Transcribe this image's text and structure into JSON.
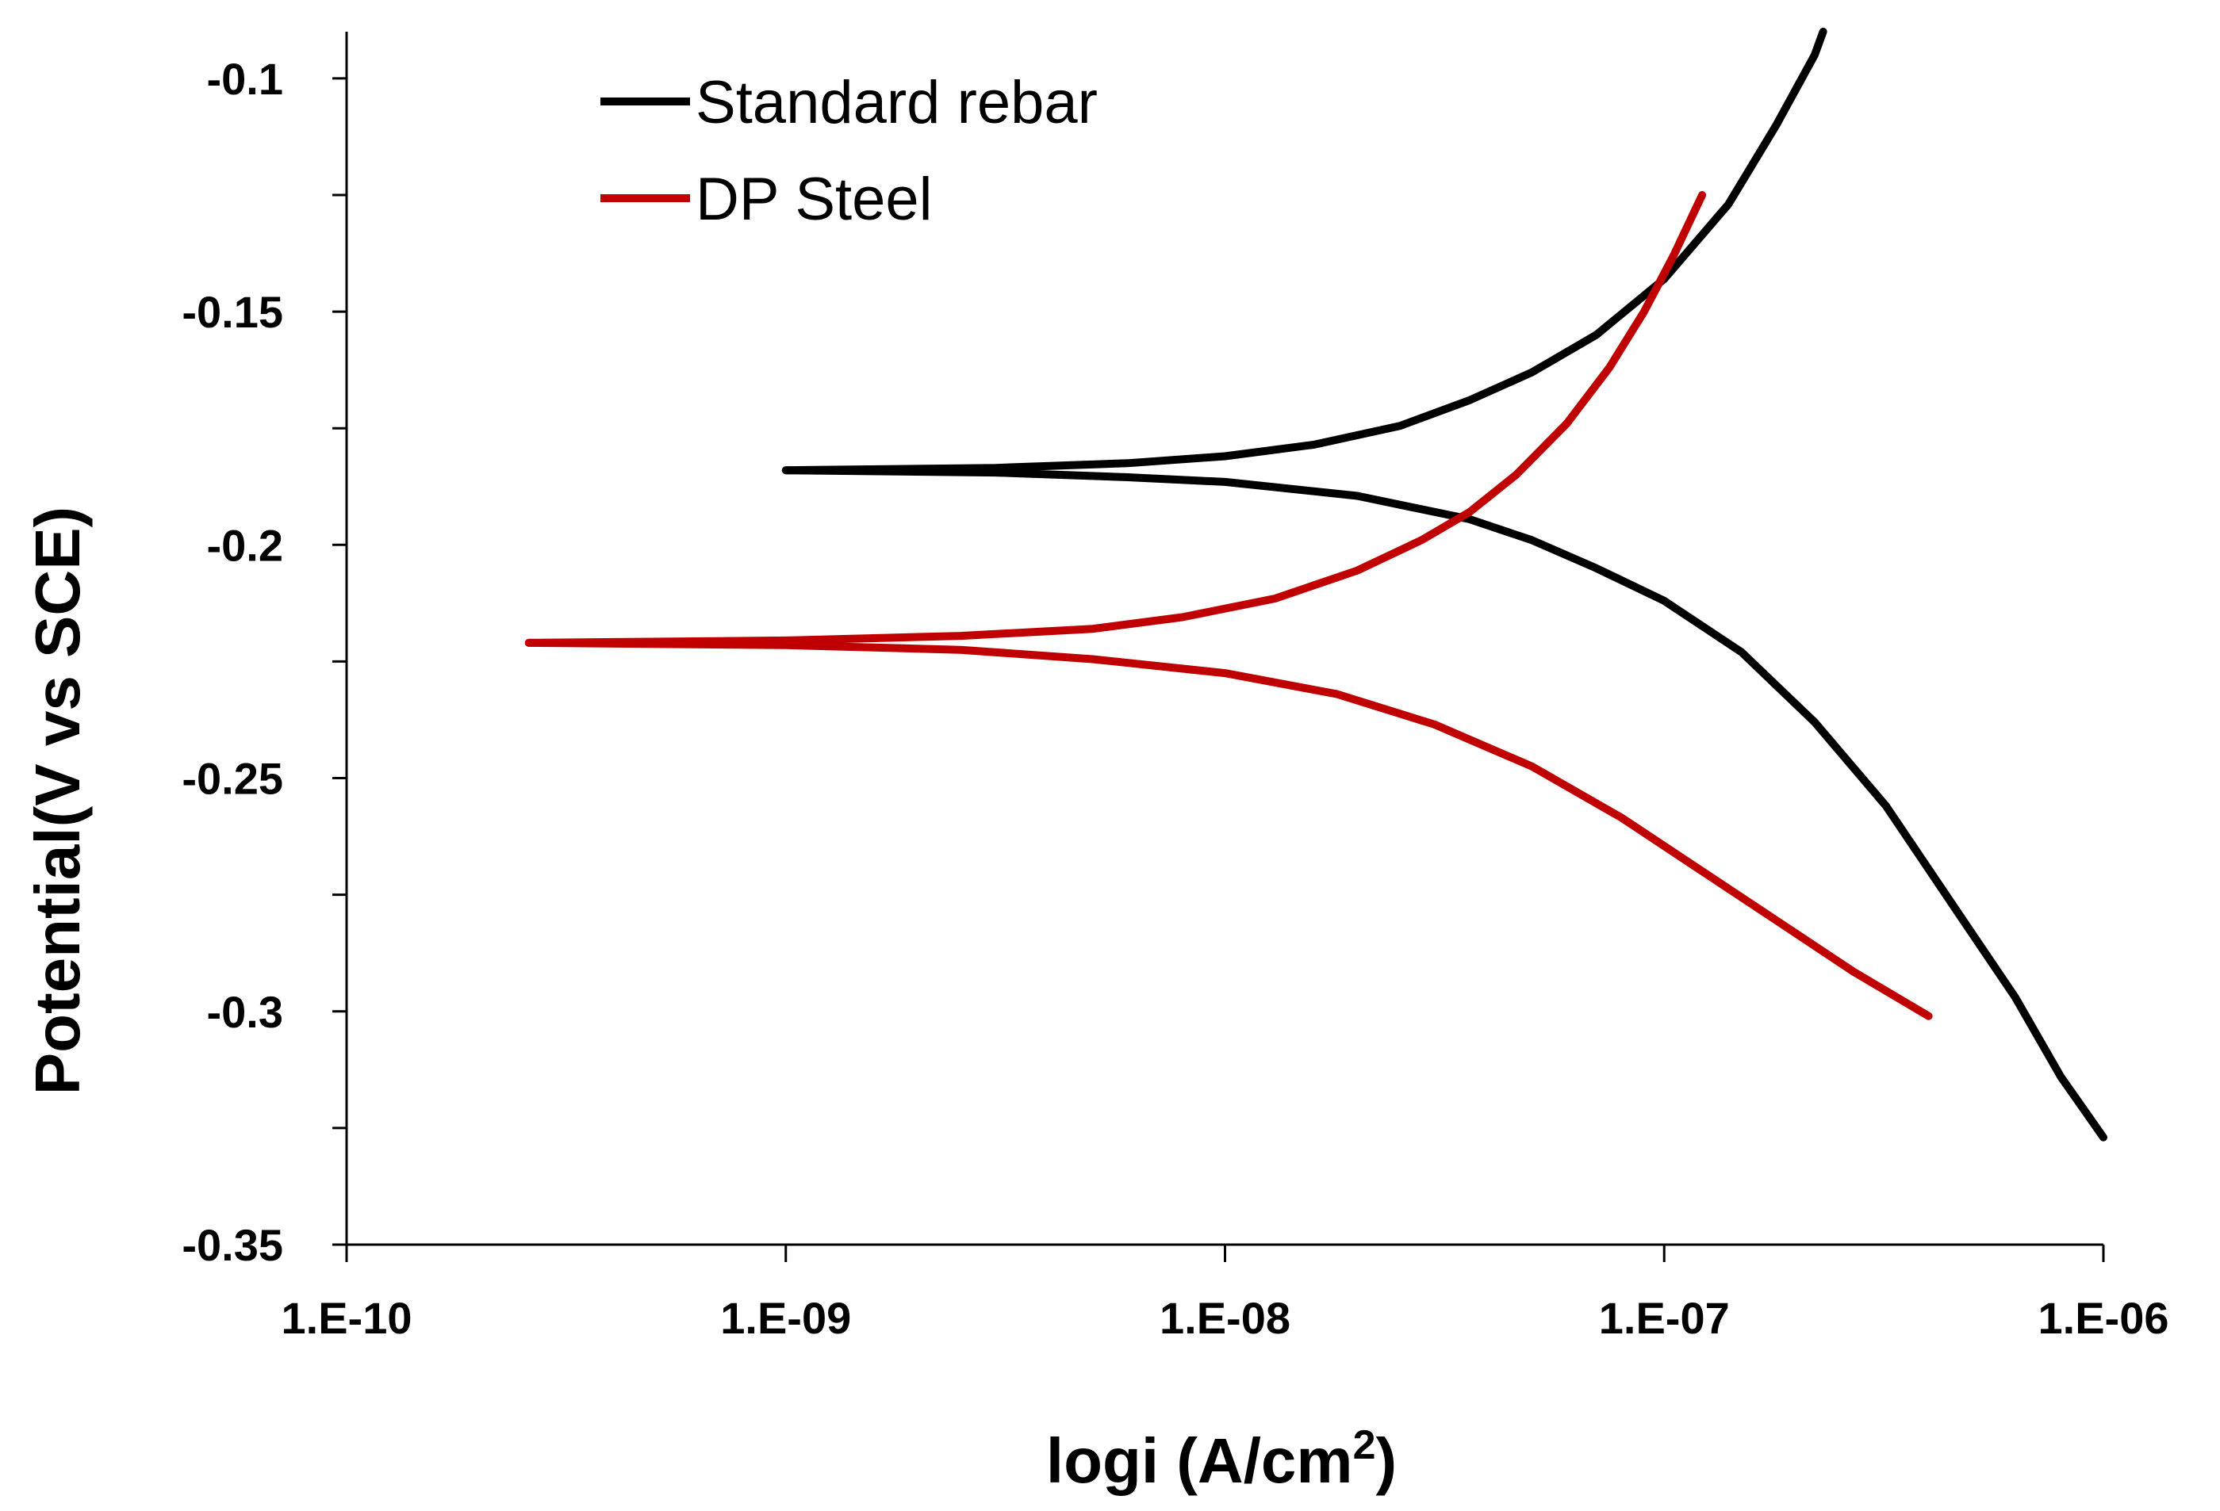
{
  "chart_data": {
    "type": "line",
    "title": "",
    "xlabel": "logi (A/cm",
    "xlabel_superscript": "2",
    "xlabel_suffix": ")",
    "ylabel": "Potential(V vs SCE)",
    "x_scale": "log",
    "xlim": [
      1e-10,
      1e-06
    ],
    "ylim": [
      -0.35,
      -0.09
    ],
    "x_ticks": [
      1e-10,
      1e-09,
      1e-08,
      1e-07,
      1e-06
    ],
    "x_tick_labels": [
      "1.E-10",
      "1.E-09",
      "1.E-08",
      "1.E-07",
      "1.E-06"
    ],
    "y_ticks": [
      -0.35,
      -0.3,
      -0.25,
      -0.2,
      -0.15,
      -0.1
    ],
    "y_tick_labels": [
      "-0.35",
      "-0.3",
      "-0.25",
      "-0.2",
      "-0.15",
      "-0.1"
    ],
    "y_minor_ticks": [
      -0.325,
      -0.275,
      -0.225,
      -0.175,
      -0.125
    ],
    "grid": false,
    "legend_position": "top-left",
    "series": [
      {
        "name": "Standard rebar",
        "color": "#000000",
        "points": [
          [
            1e-09,
            -0.184
          ],
          [
            3e-09,
            -0.1835
          ],
          [
            6e-09,
            -0.1825
          ],
          [
            1e-08,
            -0.181
          ],
          [
            1.6e-08,
            -0.1785
          ],
          [
            2.5e-08,
            -0.1745
          ],
          [
            3.6e-08,
            -0.169
          ],
          [
            5e-08,
            -0.163
          ],
          [
            7e-08,
            -0.155
          ],
          [
            1e-07,
            -0.143
          ],
          [
            1.4e-07,
            -0.127
          ],
          [
            1.8e-07,
            -0.11
          ],
          [
            2.2e-07,
            -0.095
          ],
          [
            2.3e-07,
            -0.09
          ]
        ],
        "points_cathodic": [
          [
            1e-09,
            -0.184
          ],
          [
            3e-09,
            -0.1845
          ],
          [
            6e-09,
            -0.1855
          ],
          [
            1e-08,
            -0.1865
          ],
          [
            2e-08,
            -0.1895
          ],
          [
            3.6e-08,
            -0.1945
          ],
          [
            5e-08,
            -0.199
          ],
          [
            7e-08,
            -0.205
          ],
          [
            1e-07,
            -0.212
          ],
          [
            1.5e-07,
            -0.223
          ],
          [
            2.2e-07,
            -0.238
          ],
          [
            3.2e-07,
            -0.256
          ],
          [
            4.6e-07,
            -0.278
          ],
          [
            6.3e-07,
            -0.297
          ],
          [
            8e-07,
            -0.314
          ],
          [
            1e-06,
            -0.327
          ]
        ]
      },
      {
        "name": "DP Steel",
        "color": "#c00000",
        "points": [
          [
            2.6e-10,
            -0.221
          ],
          [
            1e-09,
            -0.2205
          ],
          [
            2.5e-09,
            -0.2195
          ],
          [
            5e-09,
            -0.218
          ],
          [
            8e-09,
            -0.2155
          ],
          [
            1.3e-08,
            -0.2115
          ],
          [
            2e-08,
            -0.2055
          ],
          [
            2.8e-08,
            -0.199
          ],
          [
            3.6e-08,
            -0.193
          ],
          [
            4.6e-08,
            -0.185
          ],
          [
            6e-08,
            -0.174
          ],
          [
            7.5e-08,
            -0.162
          ],
          [
            9e-08,
            -0.15
          ],
          [
            1.05e-07,
            -0.138
          ],
          [
            1.22e-07,
            -0.125
          ]
        ],
        "points_cathodic": [
          [
            2.6e-10,
            -0.221
          ],
          [
            1e-09,
            -0.2215
          ],
          [
            2.5e-09,
            -0.2225
          ],
          [
            5e-09,
            -0.2245
          ],
          [
            1e-08,
            -0.2275
          ],
          [
            1.8e-08,
            -0.232
          ],
          [
            3e-08,
            -0.2385
          ],
          [
            5e-08,
            -0.2475
          ],
          [
            8e-08,
            -0.2585
          ],
          [
            1.2e-07,
            -0.2695
          ],
          [
            1.8e-07,
            -0.2805
          ],
          [
            2.7e-07,
            -0.2915
          ],
          [
            4e-07,
            -0.301
          ]
        ]
      }
    ]
  }
}
